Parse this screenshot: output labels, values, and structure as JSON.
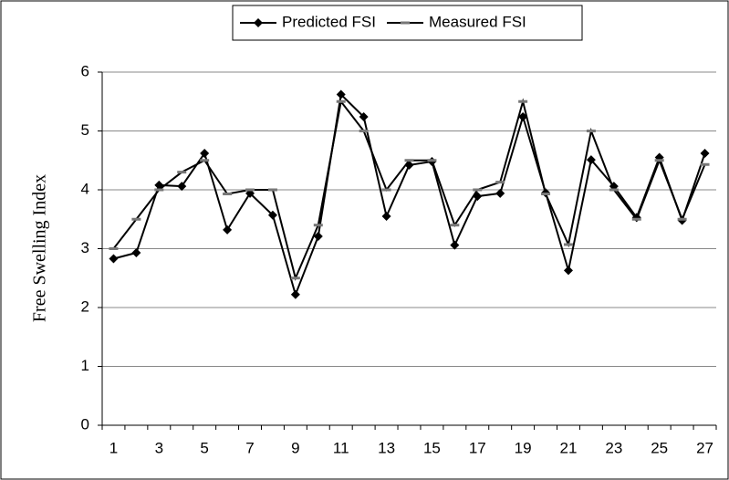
{
  "chart_data": {
    "type": "line",
    "y_label": "Free Swelling Index",
    "categories": [
      "1",
      null,
      "3",
      null,
      "5",
      null,
      "7",
      null,
      "9",
      null,
      "11",
      null,
      "13",
      null,
      "15",
      null,
      "17",
      null,
      "19",
      null,
      "21",
      null,
      "23",
      null,
      "25",
      null,
      "27"
    ],
    "series": [
      {
        "name": "Predicted FSI",
        "color": "#000000",
        "marker": "diamond",
        "values": [
          2.83,
          2.93,
          4.08,
          4.06,
          4.62,
          3.32,
          3.94,
          3.57,
          2.22,
          3.21,
          5.62,
          5.24,
          3.55,
          4.42,
          4.48,
          3.06,
          3.89,
          3.94,
          5.24,
          3.95,
          2.63,
          4.51,
          4.06,
          3.53,
          4.55,
          3.48,
          4.62
        ]
      },
      {
        "name": "Measured FSI",
        "color": "#000000",
        "marker": "dash",
        "values": [
          3.0,
          3.5,
          4.0,
          4.3,
          4.5,
          3.93,
          4.0,
          4.0,
          2.5,
          3.4,
          5.5,
          5.0,
          4.0,
          4.5,
          4.5,
          3.4,
          4.0,
          4.13,
          5.5,
          3.93,
          3.07,
          5.0,
          4.0,
          3.5,
          4.5,
          3.5,
          4.43
        ]
      }
    ],
    "ylim": [
      0,
      6
    ],
    "yticks": [
      0,
      1,
      2,
      3,
      4,
      5,
      6
    ],
    "grid": true,
    "legend": "top"
  }
}
